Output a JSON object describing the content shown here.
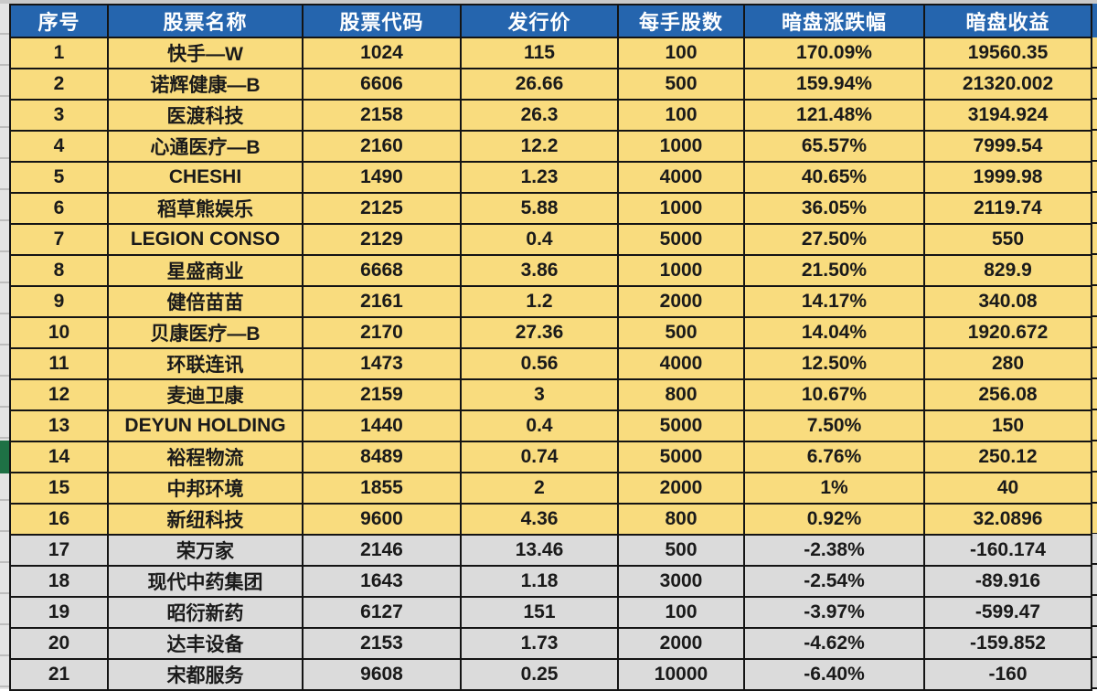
{
  "colors": {
    "header_bg": "#2565AE",
    "positive_row_bg": "#F9DC7E",
    "negative_row_bg": "#DBDBDB",
    "grid_line": "#141414",
    "selection_green": "#1E7145"
  },
  "table": {
    "columns": [
      {
        "key": "no",
        "label": "序号"
      },
      {
        "key": "name",
        "label": "股票名称"
      },
      {
        "key": "code",
        "label": "股票代码"
      },
      {
        "key": "price",
        "label": "发行价"
      },
      {
        "key": "lot",
        "label": "每手股数"
      },
      {
        "key": "change",
        "label": "暗盘涨跌幅"
      },
      {
        "key": "profit",
        "label": "暗盘收益"
      }
    ],
    "rows": [
      {
        "no": "1",
        "name": "快手—W",
        "code": "1024",
        "price": "115",
        "lot": "100",
        "change": "170.09%",
        "profit": "19560.35"
      },
      {
        "no": "2",
        "name": "诺辉健康—B",
        "code": "6606",
        "price": "26.66",
        "lot": "500",
        "change": "159.94%",
        "profit": "21320.002"
      },
      {
        "no": "3",
        "name": "医渡科技",
        "code": "2158",
        "price": "26.3",
        "lot": "100",
        "change": "121.48%",
        "profit": "3194.924"
      },
      {
        "no": "4",
        "name": "心通医疗—B",
        "code": "2160",
        "price": "12.2",
        "lot": "1000",
        "change": "65.57%",
        "profit": "7999.54"
      },
      {
        "no": "5",
        "name": "CHESHI",
        "code": "1490",
        "price": "1.23",
        "lot": "4000",
        "change": "40.65%",
        "profit": "1999.98"
      },
      {
        "no": "6",
        "name": "稻草熊娱乐",
        "code": "2125",
        "price": "5.88",
        "lot": "1000",
        "change": "36.05%",
        "profit": "2119.74"
      },
      {
        "no": "7",
        "name": "LEGION CONSO",
        "code": "2129",
        "price": "0.4",
        "lot": "5000",
        "change": "27.50%",
        "profit": "550"
      },
      {
        "no": "8",
        "name": "星盛商业",
        "code": "6668",
        "price": "3.86",
        "lot": "1000",
        "change": "21.50%",
        "profit": "829.9"
      },
      {
        "no": "9",
        "name": "健倍苗苗",
        "code": "2161",
        "price": "1.2",
        "lot": "2000",
        "change": "14.17%",
        "profit": "340.08"
      },
      {
        "no": "10",
        "name": "贝康医疗—B",
        "code": "2170",
        "price": "27.36",
        "lot": "500",
        "change": "14.04%",
        "profit": "1920.672"
      },
      {
        "no": "11",
        "name": "环联连讯",
        "code": "1473",
        "price": "0.56",
        "lot": "4000",
        "change": "12.50%",
        "profit": "280"
      },
      {
        "no": "12",
        "name": "麦迪卫康",
        "code": "2159",
        "price": "3",
        "lot": "800",
        "change": "10.67%",
        "profit": "256.08"
      },
      {
        "no": "13",
        "name": "DEYUN HOLDING",
        "code": "1440",
        "price": "0.4",
        "lot": "5000",
        "change": "7.50%",
        "profit": "150"
      },
      {
        "no": "14",
        "name": "裕程物流",
        "code": "8489",
        "price": "0.74",
        "lot": "5000",
        "change": "6.76%",
        "profit": "250.12"
      },
      {
        "no": "15",
        "name": "中邦环境",
        "code": "1855",
        "price": "2",
        "lot": "2000",
        "change": "1%",
        "profit": "40"
      },
      {
        "no": "16",
        "name": "新纽科技",
        "code": "9600",
        "price": "4.36",
        "lot": "800",
        "change": "0.92%",
        "profit": "32.0896"
      },
      {
        "no": "17",
        "name": "荣万家",
        "code": "2146",
        "price": "13.46",
        "lot": "500",
        "change": "-2.38%",
        "profit": "-160.174"
      },
      {
        "no": "18",
        "name": "现代中药集团",
        "code": "1643",
        "price": "1.18",
        "lot": "3000",
        "change": "-2.54%",
        "profit": "-89.916"
      },
      {
        "no": "19",
        "name": "昭衍新药",
        "code": "6127",
        "price": "151",
        "lot": "100",
        "change": "-3.97%",
        "profit": "-599.47"
      },
      {
        "no": "20",
        "name": "达丰设备",
        "code": "2153",
        "price": "1.73",
        "lot": "2000",
        "change": "-4.62%",
        "profit": "-159.852"
      },
      {
        "no": "21",
        "name": "宋都服务",
        "code": "9608",
        "price": "0.25",
        "lot": "10000",
        "change": "-6.40%",
        "profit": "-160"
      }
    ]
  }
}
